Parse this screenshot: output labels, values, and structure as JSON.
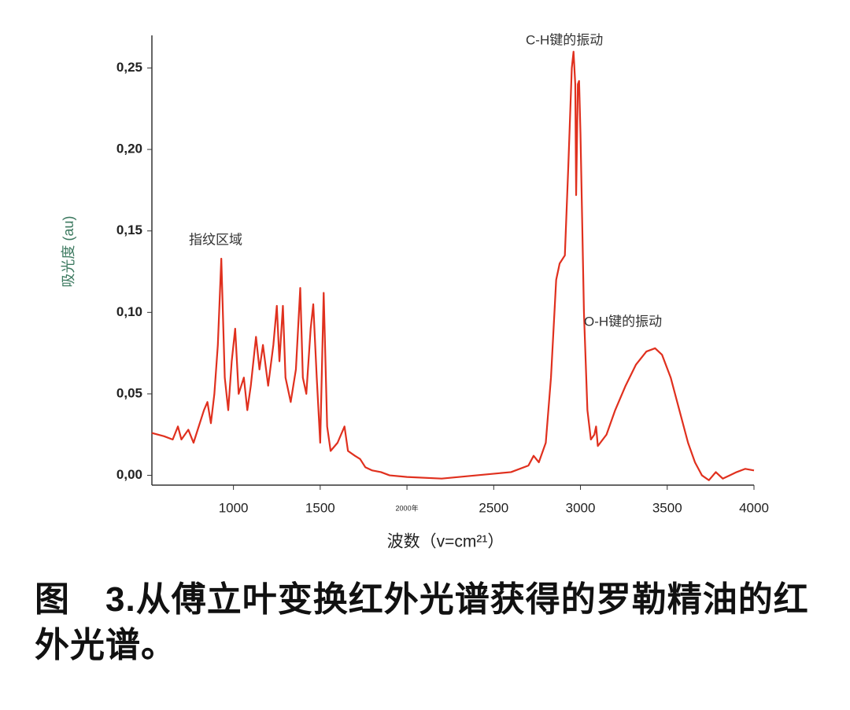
{
  "chart_data": {
    "type": "line",
    "caption": "图　3.从傅立叶变换红外光谱获得的罗勒精油的红外光谱。",
    "x_label": "波数（v=cm²¹）",
    "y_label": "吸光度 (au)",
    "annotations": [
      {
        "text": "指纹区域"
      },
      {
        "text": "C-H键的振动"
      },
      {
        "text": "O-H键的振动"
      }
    ],
    "color": "#e0301e",
    "xlim": [
      530,
      4000
    ],
    "ylim": [
      -0.006,
      0.27
    ],
    "xticks": [
      1000,
      1500,
      {
        "value": 2000,
        "label": "2000年"
      },
      2500,
      3000,
      3500,
      4000
    ],
    "yticks": [
      {
        "value": 0,
        "label": "0,00"
      },
      {
        "value": 0.05,
        "label": "0,05"
      },
      {
        "value": 0.1,
        "label": "0,10"
      },
      {
        "value": 0.15,
        "label": "0,15"
      },
      {
        "value": 0.2,
        "label": "0,20"
      },
      {
        "value": 0.25,
        "label": "0,25"
      }
    ],
    "grid": false,
    "x": [
      530,
      600,
      650,
      680,
      700,
      740,
      770,
      800,
      830,
      850,
      870,
      890,
      910,
      930,
      950,
      970,
      990,
      1010,
      1030,
      1060,
      1080,
      1100,
      1130,
      1150,
      1170,
      1200,
      1230,
      1250,
      1265,
      1285,
      1300,
      1330,
      1360,
      1385,
      1400,
      1420,
      1445,
      1460,
      1480,
      1500,
      1520,
      1540,
      1560,
      1600,
      1620,
      1640,
      1660,
      1700,
      1730,
      1760,
      1800,
      1850,
      1900,
      2000,
      2200,
      2400,
      2600,
      2700,
      2730,
      2760,
      2800,
      2830,
      2860,
      2880,
      2910,
      2930,
      2950,
      2960,
      2970,
      2975,
      2985,
      2992,
      3000,
      3020,
      3040,
      3060,
      3080,
      3090,
      3100,
      3150,
      3200,
      3260,
      3320,
      3380,
      3430,
      3470,
      3520,
      3570,
      3620,
      3660,
      3700,
      3740,
      3780,
      3820,
      3860,
      3900,
      3950,
      4000
    ],
    "values": [
      0.026,
      0.024,
      0.022,
      0.03,
      0.022,
      0.028,
      0.02,
      0.03,
      0.04,
      0.045,
      0.032,
      0.05,
      0.08,
      0.133,
      0.06,
      0.04,
      0.07,
      0.09,
      0.05,
      0.06,
      0.04,
      0.055,
      0.085,
      0.065,
      0.08,
      0.055,
      0.08,
      0.104,
      0.07,
      0.104,
      0.06,
      0.045,
      0.065,
      0.115,
      0.06,
      0.05,
      0.09,
      0.105,
      0.06,
      0.02,
      0.112,
      0.03,
      0.015,
      0.02,
      0.025,
      0.03,
      0.015,
      0.012,
      0.01,
      0.005,
      0.003,
      0.002,
      0.0,
      -0.001,
      -0.002,
      0.0,
      0.002,
      0.006,
      0.012,
      0.008,
      0.02,
      0.06,
      0.12,
      0.13,
      0.135,
      0.19,
      0.25,
      0.26,
      0.24,
      0.172,
      0.24,
      0.242,
      0.21,
      0.1,
      0.04,
      0.022,
      0.025,
      0.03,
      0.018,
      0.025,
      0.04,
      0.055,
      0.068,
      0.076,
      0.078,
      0.074,
      0.06,
      0.04,
      0.02,
      0.008,
      0.0,
      -0.003,
      0.002,
      -0.002,
      0.0,
      0.002,
      0.004,
      0.003
    ]
  }
}
